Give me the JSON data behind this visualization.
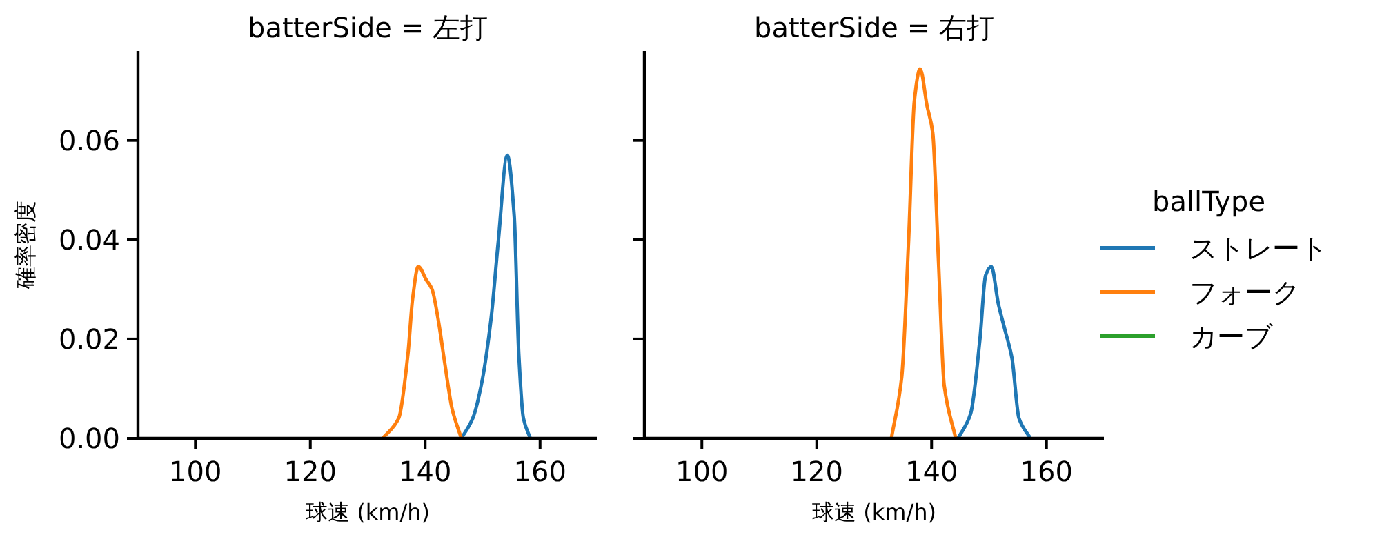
{
  "chart_data": [
    {
      "type": "line",
      "title": "batterSide = 左打",
      "xlabel": "球速 (km/h)",
      "ylabel": "確率密度",
      "xlim": [
        90,
        170
      ],
      "xticks": [
        100,
        120,
        140,
        160
      ],
      "ylim": [
        0,
        0.078
      ],
      "yticks": [
        {
          "value": 0,
          "label": "0.00"
        },
        {
          "value": 0.02,
          "label": "0.02"
        },
        {
          "value": 0.04,
          "label": "0.04"
        },
        {
          "value": 0.06,
          "label": "0.06"
        }
      ],
      "grid": false,
      "series": [
        {
          "color": "#1f77b4",
          "x": [
            146.3,
            148.3,
            149.9,
            151.5,
            152.7,
            154.3,
            155.5,
            156.3,
            157.1,
            158.3
          ],
          "values": [
            0,
            0.0041,
            0.0115,
            0.0244,
            0.0393,
            0.057,
            0.0448,
            0.017,
            0.0041,
            0
          ]
        },
        {
          "color": "#ff7f0e",
          "x": [
            132.6,
            135.4,
            137.0,
            137.8,
            138.8,
            140.2,
            141.2,
            142.2,
            143.4,
            144.7,
            146.3
          ],
          "values": [
            0,
            0.0041,
            0.017,
            0.028,
            0.0346,
            0.0319,
            0.03,
            0.0244,
            0.0152,
            0.0059,
            0
          ]
        }
      ]
    },
    {
      "type": "line",
      "title": "batterSide = 右打",
      "xlabel": "球速 (km/h)",
      "xlim": [
        90,
        170
      ],
      "xticks": [
        100,
        120,
        140,
        160
      ],
      "ylim": [
        0,
        0.078
      ],
      "yticks": [
        {
          "value": 0,
          "label": null
        },
        {
          "value": 0.02,
          "label": null
        },
        {
          "value": 0.04,
          "label": null
        },
        {
          "value": 0.06,
          "label": null
        }
      ],
      "tick_labels": "x",
      "grid": false,
      "legend": "right",
      "legend_title": "ballType",
      "series": [
        {
          "name": "ストレート",
          "color": "#1f77b4",
          "x": [
            144.6,
            146.8,
            148.4,
            149.4,
            150.4,
            151.6,
            152.8,
            154.0,
            155.2,
            157.2
          ],
          "values": [
            0,
            0.005,
            0.0198,
            0.0328,
            0.0346,
            0.0272,
            0.0217,
            0.0161,
            0.0041,
            0
          ]
        },
        {
          "name": "フォーク",
          "color": "#ff7f0e",
          "x": [
            133.0,
            134.8,
            136.0,
            137.0,
            138.0,
            139.2,
            140.2,
            141.2,
            142.2,
            144.2
          ],
          "values": [
            0,
            0.0124,
            0.04,
            0.068,
            0.0744,
            0.067,
            0.0615,
            0.0356,
            0.0106,
            0
          ]
        },
        {
          "name": "カーブ",
          "color": "#2ca02c"
        }
      ]
    }
  ]
}
